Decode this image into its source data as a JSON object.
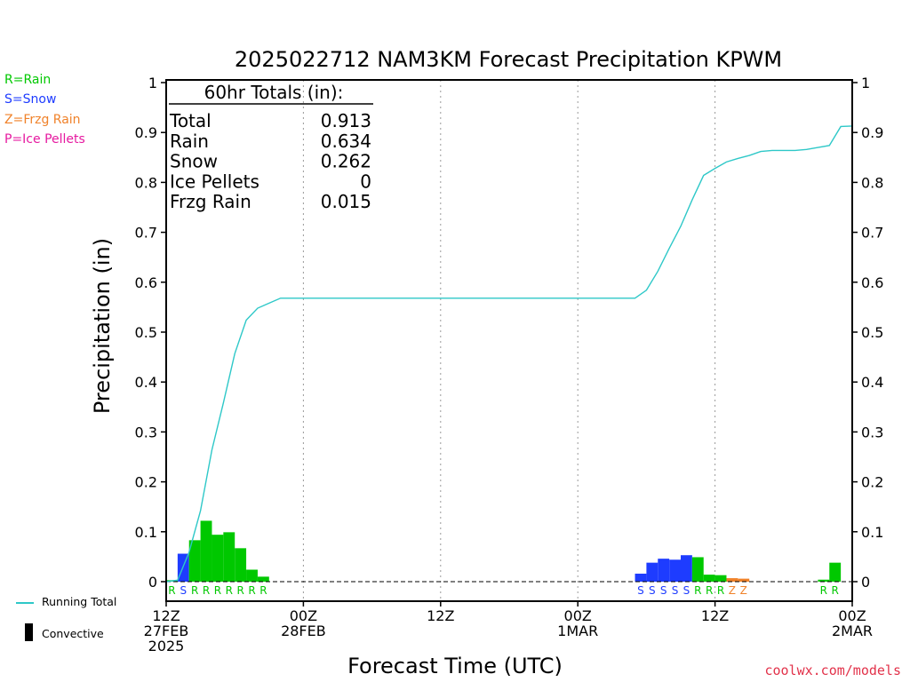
{
  "legend_types": [
    {
      "label": "R=Rain",
      "color": "#00c800"
    },
    {
      "label": "S=Snow",
      "color": "#1e3cff"
    },
    {
      "label": "Z=Frzg Rain",
      "color": "#f0822a"
    },
    {
      "label": "P=Ice Pellets",
      "color": "#e61aa0"
    }
  ],
  "key_items": {
    "running_total": "Running Total",
    "convective": "Convective"
  },
  "credit": "coolwx.com/models",
  "totals": {
    "header": "60hr Totals (in):",
    "rows": [
      {
        "label": "Total",
        "value": "0.913"
      },
      {
        "label": "Rain",
        "value": "0.634"
      },
      {
        "label": "Snow",
        "value": "0.262"
      },
      {
        "label": "Ice Pellets",
        "value": "0"
      },
      {
        "label": "Frzg Rain",
        "value": "0.015"
      }
    ]
  },
  "chart_data": {
    "type": "bar",
    "title": "2025022712 NAM3KM Forecast Precipitation KPWM",
    "xlabel": "Forecast Time (UTC)",
    "ylabel": "Precipitation (in)",
    "ylim": [
      0,
      1
    ],
    "xlim_hours": [
      0,
      60
    ],
    "y_ticks": [
      "0",
      "0.1",
      "0.2",
      "0.3",
      "0.4",
      "0.5",
      "0.6",
      "0.7",
      "0.8",
      "0.9",
      "1"
    ],
    "x_ticks": [
      {
        "hour": 0,
        "lines": [
          "12Z",
          "27FEB",
          "2025"
        ]
      },
      {
        "hour": 12,
        "lines": [
          "00Z",
          "28FEB"
        ]
      },
      {
        "hour": 24,
        "lines": [
          "12Z"
        ]
      },
      {
        "hour": 36,
        "lines": [
          "00Z",
          "1MAR"
        ]
      },
      {
        "hour": 48,
        "lines": [
          "12Z"
        ]
      },
      {
        "hour": 60,
        "lines": [
          "00Z",
          "2MAR"
        ]
      }
    ],
    "colors": {
      "R": "#00c800",
      "S": "#1e3cff",
      "Z": "#f0822a",
      "P": "#e61aa0",
      "total": "#2ec8c8"
    },
    "bars": [
      {
        "hour": 1,
        "value": 0.003,
        "type": "R"
      },
      {
        "hour": 2,
        "value": 0.056,
        "type": "S"
      },
      {
        "hour": 3,
        "value": 0.083,
        "type": "R"
      },
      {
        "hour": 4,
        "value": 0.122,
        "type": "R"
      },
      {
        "hour": 5,
        "value": 0.094,
        "type": "R"
      },
      {
        "hour": 6,
        "value": 0.099,
        "type": "R"
      },
      {
        "hour": 7,
        "value": 0.067,
        "type": "R"
      },
      {
        "hour": 8,
        "value": 0.024,
        "type": "R"
      },
      {
        "hour": 9,
        "value": 0.01,
        "type": "R"
      },
      {
        "hour": 42,
        "value": 0.016,
        "type": "S"
      },
      {
        "hour": 43,
        "value": 0.038,
        "type": "S"
      },
      {
        "hour": 44,
        "value": 0.046,
        "type": "S"
      },
      {
        "hour": 45,
        "value": 0.044,
        "type": "S"
      },
      {
        "hour": 46,
        "value": 0.053,
        "type": "S"
      },
      {
        "hour": 47,
        "value": 0.049,
        "type": "R"
      },
      {
        "hour": 48,
        "value": 0.014,
        "type": "R"
      },
      {
        "hour": 49,
        "value": 0.013,
        "type": "R"
      },
      {
        "hour": 50,
        "value": 0.007,
        "type": "Z"
      },
      {
        "hour": 51,
        "value": 0.006,
        "type": "Z"
      },
      {
        "hour": 58,
        "value": 0.004,
        "type": "R"
      },
      {
        "hour": 59,
        "value": 0.038,
        "type": "R"
      }
    ],
    "running_total": [
      [
        0,
        0
      ],
      [
        1,
        0.003
      ],
      [
        2,
        0.059
      ],
      [
        3,
        0.142
      ],
      [
        4,
        0.264
      ],
      [
        5,
        0.358
      ],
      [
        6,
        0.457
      ],
      [
        7,
        0.524
      ],
      [
        8,
        0.548
      ],
      [
        9,
        0.558
      ],
      [
        10,
        0.568
      ],
      [
        41,
        0.568
      ],
      [
        42,
        0.584
      ],
      [
        43,
        0.622
      ],
      [
        44,
        0.668
      ],
      [
        45,
        0.712
      ],
      [
        46,
        0.765
      ],
      [
        47,
        0.814
      ],
      [
        48,
        0.828
      ],
      [
        49,
        0.841
      ],
      [
        50,
        0.848
      ],
      [
        51,
        0.854
      ],
      [
        52,
        0.862
      ],
      [
        53,
        0.864
      ],
      [
        55,
        0.864
      ],
      [
        56,
        0.866
      ],
      [
        57,
        0.87
      ],
      [
        58,
        0.874
      ],
      [
        59,
        0.912
      ],
      [
        60,
        0.913
      ]
    ]
  }
}
